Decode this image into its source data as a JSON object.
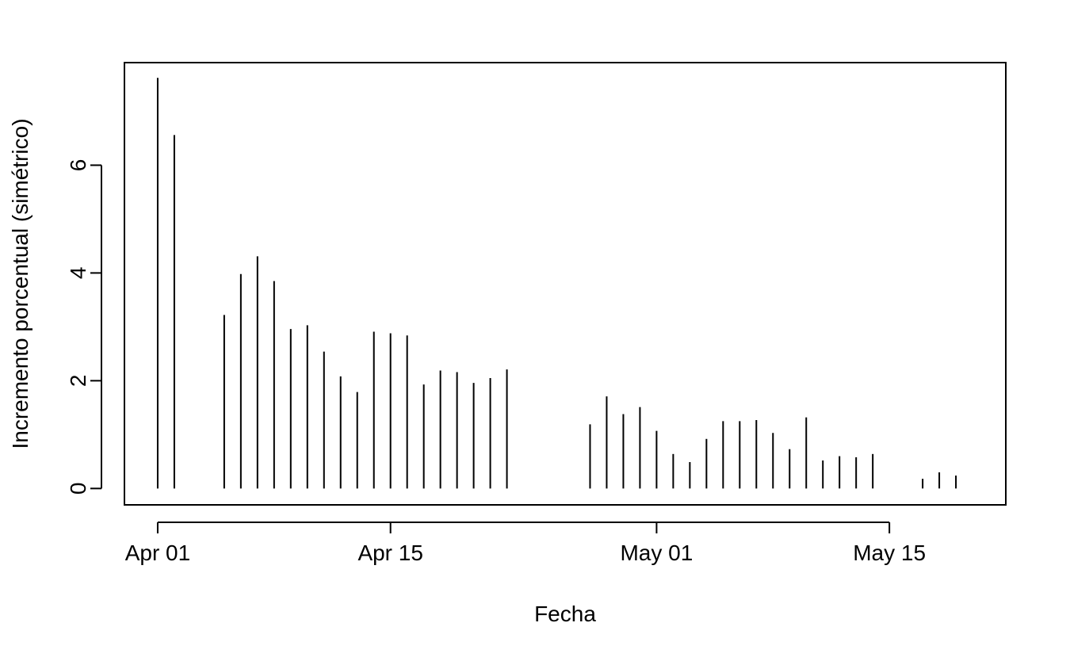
{
  "chart_data": {
    "type": "bar",
    "style": "vertical-lines",
    "xlabel": "Fecha",
    "ylabel": "Incremento porcentual (simétrico)",
    "xlim": [
      "2020-03-30",
      "2020-05-22"
    ],
    "ylim": [
      0,
      7.6
    ],
    "x_ticks": [
      {
        "date": "2020-04-01",
        "label": "Apr 01"
      },
      {
        "date": "2020-04-15",
        "label": "Apr 15"
      },
      {
        "date": "2020-05-01",
        "label": "May 01"
      },
      {
        "date": "2020-05-15",
        "label": "May 15"
      }
    ],
    "y_ticks": [
      0,
      2,
      4,
      6
    ],
    "grid": false,
    "legend": "none",
    "color": "#000000",
    "series": [
      {
        "x": [
          "2020-04-01",
          "2020-04-02",
          "2020-04-05",
          "2020-04-06",
          "2020-04-07",
          "2020-04-08",
          "2020-04-09",
          "2020-04-10",
          "2020-04-11",
          "2020-04-12",
          "2020-04-13",
          "2020-04-14",
          "2020-04-15",
          "2020-04-16",
          "2020-04-17",
          "2020-04-18",
          "2020-04-19",
          "2020-04-20",
          "2020-04-21",
          "2020-04-22",
          "2020-04-27",
          "2020-04-28",
          "2020-04-29",
          "2020-04-30",
          "2020-05-01",
          "2020-05-02",
          "2020-05-03",
          "2020-05-04",
          "2020-05-05",
          "2020-05-06",
          "2020-05-07",
          "2020-05-08",
          "2020-05-09",
          "2020-05-10",
          "2020-05-11",
          "2020-05-12",
          "2020-05-13",
          "2020-05-14",
          "2020-05-17",
          "2020-05-18",
          "2020-05-19"
        ],
        "values": [
          7.62,
          6.56,
          3.22,
          3.98,
          4.31,
          3.85,
          2.96,
          3.03,
          2.54,
          2.08,
          1.79,
          2.91,
          2.88,
          2.84,
          1.93,
          2.19,
          2.16,
          1.96,
          2.05,
          2.21,
          1.19,
          1.71,
          1.38,
          1.51,
          1.07,
          0.64,
          0.49,
          0.92,
          1.25,
          1.25,
          1.27,
          1.03,
          0.73,
          1.32,
          0.52,
          0.6,
          0.58,
          0.64,
          0.18,
          0.3,
          0.24
        ]
      }
    ]
  }
}
